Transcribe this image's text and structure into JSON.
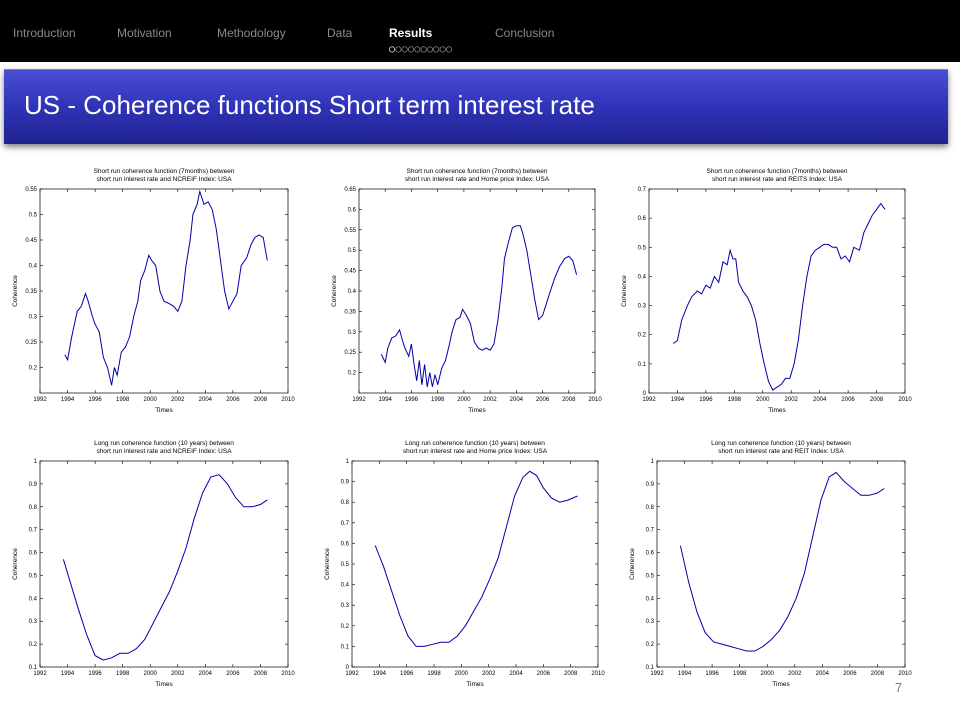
{
  "nav": {
    "items": [
      {
        "label": "Introduction",
        "active": false
      },
      {
        "label": "Motivation",
        "active": false
      },
      {
        "label": "Methodology",
        "active": false
      },
      {
        "label": "Data",
        "active": false
      },
      {
        "label": "Results",
        "active": true
      },
      {
        "label": "Conclusion",
        "active": false
      }
    ],
    "progress_dots_total": 10,
    "progress_dots_current": 1
  },
  "slide": {
    "title": "US - Coherence functions Short term interest rate",
    "page_number": "7"
  },
  "colors": {
    "nav_bg": "#000000",
    "title_bar": "#2f33b7",
    "line": "#0000aa"
  },
  "chart_data": [
    {
      "type": "line",
      "title": "Short run coherence function (7months) between short run interest rate and NCREIF Index: USA",
      "xlabel": "Times",
      "ylabel": "Coherence",
      "xlim": [
        1992,
        2010
      ],
      "ylim": [
        0.15,
        0.55
      ],
      "xticks": [
        "1992",
        "1994",
        "1996",
        "1998",
        "2000",
        "2002",
        "2004",
        "2006",
        "2008",
        "2010"
      ],
      "yticks": [
        "0.2",
        "0.25",
        "0.3",
        "0.35",
        "0.4",
        "0.45",
        "0.5",
        "0.55"
      ],
      "grid": false,
      "x": [
        1993.8,
        1994.0,
        1994.3,
        1994.7,
        1995.0,
        1995.3,
        1995.5,
        1995.8,
        1996.0,
        1996.3,
        1996.6,
        1996.9,
        1997.2,
        1997.4,
        1997.6,
        1997.9,
        1998.2,
        1998.5,
        1998.8,
        1999.1,
        1999.3,
        1999.6,
        1999.9,
        2000.1,
        2000.4,
        2000.7,
        2001.0,
        2001.4,
        2001.7,
        2002.0,
        2002.3,
        2002.6,
        2002.9,
        2003.1,
        2003.4,
        2003.6,
        2003.9,
        2004.2,
        2004.5,
        2004.8,
        2005.1,
        2005.4,
        2005.7,
        2006.0,
        2006.3,
        2006.6,
        2007.0,
        2007.3,
        2007.6,
        2007.9,
        2008.2,
        2008.5
      ],
      "y": [
        0.225,
        0.215,
        0.26,
        0.31,
        0.32,
        0.345,
        0.33,
        0.3,
        0.285,
        0.27,
        0.22,
        0.2,
        0.165,
        0.2,
        0.185,
        0.23,
        0.24,
        0.26,
        0.3,
        0.33,
        0.37,
        0.39,
        0.42,
        0.41,
        0.4,
        0.35,
        0.33,
        0.325,
        0.32,
        0.31,
        0.33,
        0.4,
        0.45,
        0.5,
        0.52,
        0.545,
        0.52,
        0.525,
        0.51,
        0.47,
        0.41,
        0.35,
        0.315,
        0.33,
        0.345,
        0.4,
        0.415,
        0.44,
        0.455,
        0.46,
        0.455,
        0.41
      ]
    },
    {
      "type": "line",
      "title": "Short run coherence function (7months) between short run interest rate and Home price Index: USA",
      "xlabel": "Times",
      "ylabel": "Coherence",
      "xlim": [
        1992,
        2010
      ],
      "ylim": [
        0.15,
        0.65
      ],
      "xticks": [
        "1992",
        "1994",
        "1996",
        "1998",
        "2000",
        "2002",
        "2004",
        "2006",
        "2008",
        "2010"
      ],
      "yticks": [
        "0.2",
        "0.25",
        "0.3",
        "0.35",
        "0.4",
        "0.45",
        "0.5",
        "0.55",
        "0.6",
        "0.65"
      ],
      "grid": false,
      "x": [
        1993.7,
        1994.0,
        1994.2,
        1994.5,
        1994.8,
        1995.1,
        1995.3,
        1995.5,
        1995.8,
        1996.0,
        1996.2,
        1996.4,
        1996.6,
        1996.8,
        1997.0,
        1997.2,
        1997.4,
        1997.6,
        1997.8,
        1998.0,
        1998.3,
        1998.6,
        1998.9,
        1999.1,
        1999.4,
        1999.7,
        1999.9,
        2000.2,
        2000.5,
        2000.8,
        2001.1,
        2001.4,
        2001.7,
        2002.0,
        2002.3,
        2002.6,
        2002.9,
        2003.1,
        2003.4,
        2003.7,
        2004.0,
        2004.3,
        2004.5,
        2004.8,
        2005.1,
        2005.4,
        2005.7,
        2006.0,
        2006.3,
        2006.6,
        2006.9,
        2007.3,
        2007.7,
        2008.0,
        2008.3,
        2008.6
      ],
      "y": [
        0.245,
        0.225,
        0.26,
        0.285,
        0.29,
        0.305,
        0.28,
        0.26,
        0.24,
        0.27,
        0.22,
        0.18,
        0.23,
        0.17,
        0.22,
        0.165,
        0.2,
        0.165,
        0.195,
        0.17,
        0.21,
        0.23,
        0.27,
        0.3,
        0.33,
        0.335,
        0.355,
        0.34,
        0.32,
        0.275,
        0.26,
        0.255,
        0.26,
        0.255,
        0.27,
        0.33,
        0.41,
        0.48,
        0.52,
        0.555,
        0.56,
        0.56,
        0.54,
        0.5,
        0.44,
        0.38,
        0.33,
        0.34,
        0.37,
        0.4,
        0.43,
        0.46,
        0.48,
        0.485,
        0.475,
        0.44
      ]
    },
    {
      "type": "line",
      "title": "Short run coherence function (7months) between short run interest rate and REITS Index: USA",
      "xlabel": "Times",
      "ylabel": "Coherence",
      "xlim": [
        1992,
        2010
      ],
      "ylim": [
        0,
        0.7
      ],
      "xticks": [
        "1992",
        "1994",
        "1996",
        "1998",
        "2000",
        "2002",
        "2004",
        "2006",
        "2008",
        "2010"
      ],
      "yticks": [
        "0",
        "0.1",
        "0.2",
        "0.3",
        "0.4",
        "0.5",
        "0.6",
        "0.7"
      ],
      "grid": false,
      "x": [
        1993.7,
        1994.0,
        1994.3,
        1994.7,
        1995.0,
        1995.4,
        1995.7,
        1996.0,
        1996.3,
        1996.6,
        1996.9,
        1997.2,
        1997.5,
        1997.7,
        1997.9,
        1998.1,
        1998.3,
        1998.6,
        1998.9,
        1999.2,
        1999.5,
        1999.8,
        2000.1,
        2000.4,
        2000.7,
        2001.0,
        2001.3,
        2001.6,
        2001.9,
        2002.2,
        2002.5,
        2002.8,
        2003.1,
        2003.4,
        2003.7,
        2004.0,
        2004.3,
        2004.6,
        2004.9,
        2005.2,
        2005.5,
        2005.8,
        2006.1,
        2006.4,
        2006.8,
        2007.1,
        2007.4,
        2007.7,
        2008.0,
        2008.3,
        2008.6
      ],
      "y": [
        0.17,
        0.18,
        0.25,
        0.3,
        0.33,
        0.35,
        0.34,
        0.37,
        0.36,
        0.4,
        0.38,
        0.45,
        0.44,
        0.49,
        0.46,
        0.46,
        0.38,
        0.35,
        0.33,
        0.3,
        0.25,
        0.17,
        0.1,
        0.04,
        0.01,
        0.02,
        0.03,
        0.05,
        0.05,
        0.1,
        0.18,
        0.3,
        0.4,
        0.47,
        0.49,
        0.5,
        0.51,
        0.51,
        0.5,
        0.5,
        0.46,
        0.47,
        0.45,
        0.5,
        0.49,
        0.55,
        0.58,
        0.61,
        0.63,
        0.65,
        0.63
      ]
    },
    {
      "type": "line",
      "title": "Long run coherence function (10 years) between short run interest rate and NCREIF Index: USA",
      "xlabel": "Times",
      "ylabel": "Coherence",
      "xlim": [
        1992,
        2010
      ],
      "ylim": [
        0.1,
        1
      ],
      "xticks": [
        "1992",
        "1994",
        "1996",
        "1998",
        "2000",
        "2002",
        "2004",
        "2006",
        "2008",
        "2010"
      ],
      "yticks": [
        "0.1",
        "0.2",
        "0.3",
        "0.4",
        "0.5",
        "0.6",
        "0.7",
        "0.8",
        "0.9",
        "1"
      ],
      "grid": false,
      "x": [
        1993.7,
        1994.2,
        1994.8,
        1995.4,
        1996.0,
        1996.6,
        1997.2,
        1997.8,
        1998.4,
        1999.0,
        1999.6,
        2000.2,
        2000.8,
        2001.4,
        2002.0,
        2002.6,
        2003.2,
        2003.8,
        2004.4,
        2005.0,
        2005.6,
        2006.2,
        2006.8,
        2007.4,
        2008.0,
        2008.5
      ],
      "y": [
        0.57,
        0.47,
        0.35,
        0.24,
        0.15,
        0.13,
        0.14,
        0.16,
        0.16,
        0.18,
        0.22,
        0.29,
        0.36,
        0.43,
        0.52,
        0.62,
        0.75,
        0.86,
        0.93,
        0.94,
        0.9,
        0.84,
        0.8,
        0.8,
        0.81,
        0.83
      ]
    },
    {
      "type": "line",
      "title": "Long run coherence function (10 years) between short run interest rate and Home price Index: USA",
      "xlabel": "Times",
      "ylabel": "Coherence",
      "xlim": [
        1992,
        2010
      ],
      "ylim": [
        0,
        1
      ],
      "xticks": [
        "1992",
        "1994",
        "1996",
        "1998",
        "2000",
        "2002",
        "2004",
        "2006",
        "2008",
        "2010"
      ],
      "yticks": [
        "0",
        "0.1",
        "0.2",
        "0.3",
        "0.4",
        "0.5",
        "0.6",
        "0.7",
        "0.8",
        "0.9",
        "1"
      ],
      "grid": false,
      "x": [
        1993.7,
        1994.3,
        1994.9,
        1995.5,
        1996.1,
        1996.7,
        1997.3,
        1997.9,
        1998.5,
        1999.1,
        1999.7,
        2000.3,
        2000.9,
        2001.5,
        2002.1,
        2002.7,
        2003.3,
        2003.9,
        2004.5,
        2005.0,
        2005.5,
        2006.0,
        2006.6,
        2007.2,
        2007.8,
        2008.5
      ],
      "y": [
        0.59,
        0.49,
        0.37,
        0.25,
        0.15,
        0.1,
        0.1,
        0.11,
        0.12,
        0.12,
        0.15,
        0.2,
        0.27,
        0.34,
        0.43,
        0.53,
        0.68,
        0.83,
        0.92,
        0.95,
        0.93,
        0.87,
        0.82,
        0.8,
        0.81,
        0.83
      ]
    },
    {
      "type": "line",
      "title": "Long run coherence function (10 years) between short run interest rate and REIT Index: USA",
      "xlabel": "Times",
      "ylabel": "Coherence",
      "xlim": [
        1992,
        2010
      ],
      "ylim": [
        0.1,
        1
      ],
      "xticks": [
        "1992",
        "1994",
        "1996",
        "1998",
        "2000",
        "2002",
        "2004",
        "2006",
        "2008",
        "2010"
      ],
      "yticks": [
        "0.1",
        "0.2",
        "0.3",
        "0.4",
        "0.5",
        "0.6",
        "0.7",
        "0.8",
        "0.9",
        "1"
      ],
      "grid": false,
      "x": [
        1993.7,
        1994.3,
        1994.9,
        1995.5,
        1996.1,
        1996.7,
        1997.3,
        1997.9,
        1998.5,
        1999.1,
        1999.7,
        2000.3,
        2000.9,
        2001.5,
        2002.1,
        2002.7,
        2003.3,
        2003.9,
        2004.5,
        2005.0,
        2005.6,
        2006.2,
        2006.8,
        2007.4,
        2008.0,
        2008.5
      ],
      "y": [
        0.63,
        0.47,
        0.34,
        0.25,
        0.21,
        0.2,
        0.19,
        0.18,
        0.17,
        0.17,
        0.19,
        0.22,
        0.26,
        0.32,
        0.4,
        0.51,
        0.67,
        0.83,
        0.93,
        0.95,
        0.91,
        0.88,
        0.85,
        0.85,
        0.86,
        0.88
      ]
    }
  ]
}
